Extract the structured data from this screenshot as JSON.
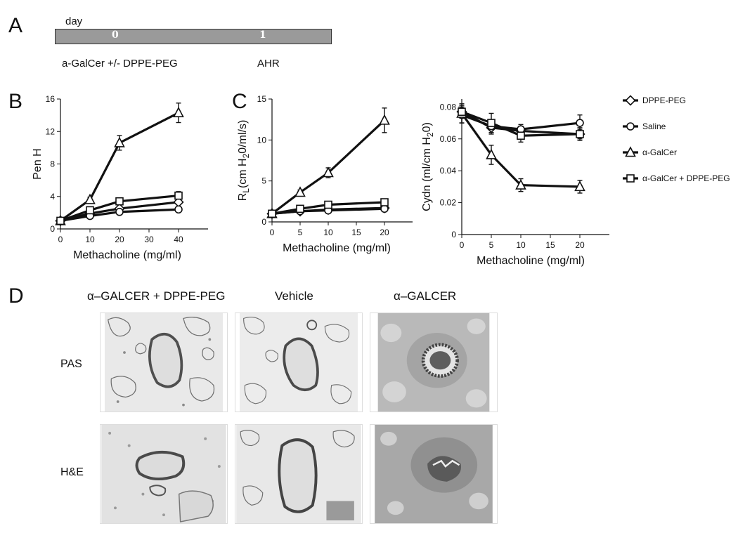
{
  "panels": {
    "a": "A",
    "b": "B",
    "c": "C",
    "d": "D"
  },
  "timeline": {
    "unit_label": "day",
    "days": [
      "0",
      "1"
    ],
    "treatment_label": "a-GalCer +/- DPPE-PEG",
    "readout_label": "AHR"
  },
  "legend": {
    "items": [
      {
        "label": "DPPE-PEG",
        "marker": "diamond"
      },
      {
        "label": "Saline",
        "marker": "circle"
      },
      {
        "label": "α-GalCer",
        "marker": "triangle"
      },
      {
        "label": "α-GalCer + DPPE-PEG",
        "marker": "square"
      }
    ]
  },
  "chart_data": [
    {
      "type": "line",
      "xlabel": "Methacholine (mg/ml)",
      "ylabel": "Pen H",
      "xlim": [
        0,
        50
      ],
      "ylim": [
        0,
        16
      ],
      "xticks": [
        0,
        10,
        20,
        30,
        40
      ],
      "yticks": [
        0,
        4,
        8,
        12,
        16
      ],
      "x": [
        0,
        10,
        20,
        40
      ],
      "series": [
        {
          "name": "DPPE-PEG",
          "marker": "diamond",
          "values": [
            1.0,
            1.9,
            2.5,
            3.3
          ],
          "errors": [
            0.2,
            0.2,
            0.3,
            0.3
          ]
        },
        {
          "name": "Saline",
          "marker": "circle",
          "values": [
            1.0,
            1.6,
            2.1,
            2.4
          ],
          "errors": [
            0.2,
            0.2,
            0.2,
            0.2
          ]
        },
        {
          "name": "α-GalCer",
          "marker": "triangle",
          "values": [
            1.0,
            3.6,
            10.6,
            14.3
          ],
          "errors": [
            0.2,
            0.3,
            0.9,
            1.2
          ]
        },
        {
          "name": "α-GalCer + DPPE-PEG",
          "marker": "square",
          "values": [
            1.0,
            2.3,
            3.4,
            4.1
          ],
          "errors": [
            0.2,
            0.3,
            0.4,
            0.5
          ]
        }
      ]
    },
    {
      "type": "line",
      "xlabel": "Methacholine (mg/ml)",
      "ylabel_main": "R",
      "ylabel_sub": "L",
      "ylabel_rest": "(cm H",
      "ylabel_sub2": "2",
      "ylabel_end": "0/ml/s)",
      "xlim": [
        0,
        25
      ],
      "ylim": [
        0,
        15
      ],
      "xticks": [
        0,
        5,
        10,
        15,
        20
      ],
      "yticks": [
        0,
        5,
        10,
        15
      ],
      "x": [
        0,
        5,
        10,
        20
      ],
      "series": [
        {
          "name": "DPPE-PEG",
          "marker": "diamond",
          "values": [
            1.0,
            1.3,
            1.5,
            1.7
          ],
          "errors": [
            0.1,
            0.1,
            0.1,
            0.1
          ]
        },
        {
          "name": "Saline",
          "marker": "circle",
          "values": [
            1.0,
            1.3,
            1.4,
            1.6
          ],
          "errors": [
            0.1,
            0.1,
            0.1,
            0.1
          ]
        },
        {
          "name": "α-GalCer",
          "marker": "triangle",
          "values": [
            1.0,
            3.6,
            6.0,
            12.4
          ],
          "errors": [
            0.2,
            0.3,
            0.6,
            1.5
          ]
        },
        {
          "name": "α-GalCer + DPPE-PEG",
          "marker": "square",
          "values": [
            1.0,
            1.6,
            2.1,
            2.4
          ],
          "errors": [
            0.1,
            0.2,
            0.2,
            0.3
          ]
        }
      ]
    },
    {
      "type": "line",
      "xlabel": "Methacholine (mg/ml)",
      "ylabel_main": "Cydn (ml/cm H",
      "ylabel_sub": "2",
      "ylabel_end": "0)",
      "xlim": [
        0,
        25
      ],
      "ylim": [
        0,
        0.085
      ],
      "xticks": [
        0,
        5,
        10,
        15,
        20
      ],
      "yticks": [
        0,
        0.02,
        0.04,
        0.06,
        0.08
      ],
      "ytick_labels": [
        "0",
        "0.02",
        "0.04",
        "0.06",
        "0.08"
      ],
      "x": [
        0,
        5,
        10,
        20
      ],
      "series": [
        {
          "name": "DPPE-PEG",
          "marker": "diamond",
          "values": [
            0.077,
            0.067,
            0.065,
            0.063
          ],
          "errors": [
            0.004,
            0.004,
            0.003,
            0.004
          ]
        },
        {
          "name": "Saline",
          "marker": "circle",
          "values": [
            0.075,
            0.068,
            0.066,
            0.07
          ],
          "errors": [
            0.005,
            0.004,
            0.003,
            0.005
          ]
        },
        {
          "name": "α-GalCer",
          "marker": "triangle",
          "values": [
            0.076,
            0.05,
            0.031,
            0.03
          ],
          "errors": [
            0.006,
            0.006,
            0.004,
            0.004
          ]
        },
        {
          "name": "α-GalCer + DPPE-PEG",
          "marker": "square",
          "values": [
            0.077,
            0.07,
            0.062,
            0.063
          ],
          "errors": [
            0.003,
            0.006,
            0.004,
            0.003
          ]
        }
      ]
    }
  ],
  "histology": {
    "columns": [
      "α–GALCER + DPPE-PEG",
      "Vehicle",
      "α–GALCER"
    ],
    "rows": [
      "PAS",
      "H&E"
    ]
  }
}
